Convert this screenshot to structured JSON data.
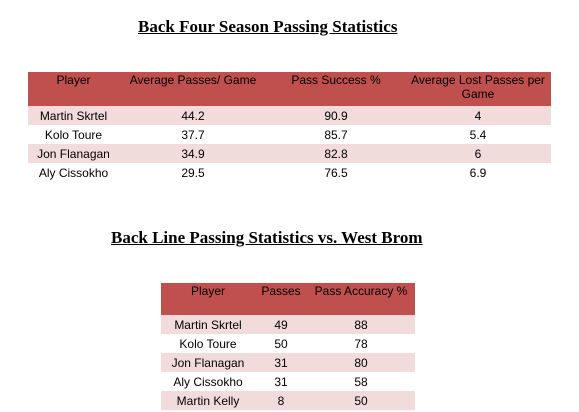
{
  "table1": {
    "title": "Back Four Season Passing Statistics",
    "headers": [
      "Player",
      "Average Passes/ Game",
      "Pass Success %",
      "Average Lost Passes per Game"
    ],
    "rows": [
      [
        "Martin Skrtel",
        "44.2",
        "90.9",
        "4"
      ],
      [
        "Kolo Toure",
        "37.7",
        "85.7",
        "5.4"
      ],
      [
        "Jon Flanagan",
        "34.9",
        "82.8",
        "6"
      ],
      [
        "Aly Cissokho",
        "29.5",
        "76.5",
        "6.9"
      ]
    ]
  },
  "table2": {
    "title": "Back Line Passing Statistics vs. West Brom",
    "headers": [
      "Player",
      "Passes",
      "Pass Accuracy %"
    ],
    "rows": [
      [
        "Martin Skrtel",
        "49",
        "88"
      ],
      [
        "Kolo Toure",
        "50",
        "78"
      ],
      [
        "Jon Flanagan",
        "31",
        "80"
      ],
      [
        "Aly Cissokho",
        "31",
        "58"
      ],
      [
        "Martin Kelly",
        "8",
        "50"
      ]
    ]
  },
  "colors": {
    "header_bg": "#c0504d",
    "shaded_row_bg": "#f2dcdb",
    "plain_row_bg": "#ffffff"
  }
}
